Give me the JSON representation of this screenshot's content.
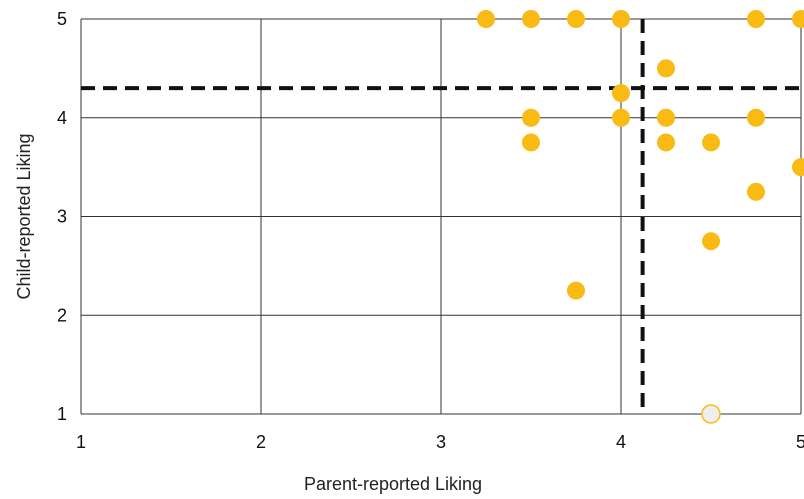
{
  "chart_data": {
    "type": "scatter",
    "xlabel": "Parent-reported Liking",
    "ylabel": "Child-reported Liking",
    "xlim": [
      1,
      5
    ],
    "ylim": [
      1,
      5
    ],
    "x_ticks": [
      "1",
      "2",
      "3",
      "4",
      "5"
    ],
    "y_ticks": [
      "1",
      "2",
      "3",
      "4",
      "5"
    ],
    "grid": true,
    "reference_lines": {
      "x_mean": 4.12,
      "y_mean": 4.3,
      "style": "dashed"
    },
    "point_color": "#F9BA14",
    "hollow_point_fill": "#EEEEEE",
    "points": [
      {
        "x": 3.25,
        "y": 5.0
      },
      {
        "x": 3.5,
        "y": 5.0
      },
      {
        "x": 3.75,
        "y": 5.0
      },
      {
        "x": 4.0,
        "y": 5.0
      },
      {
        "x": 4.75,
        "y": 5.0
      },
      {
        "x": 5.0,
        "y": 5.0
      },
      {
        "x": 4.25,
        "y": 4.5
      },
      {
        "x": 4.0,
        "y": 4.25
      },
      {
        "x": 3.5,
        "y": 4.0
      },
      {
        "x": 4.0,
        "y": 4.0
      },
      {
        "x": 4.25,
        "y": 4.0
      },
      {
        "x": 4.75,
        "y": 4.0
      },
      {
        "x": 3.5,
        "y": 3.75
      },
      {
        "x": 4.25,
        "y": 3.75
      },
      {
        "x": 4.5,
        "y": 3.75
      },
      {
        "x": 5.0,
        "y": 3.5
      },
      {
        "x": 4.75,
        "y": 3.25
      },
      {
        "x": 4.5,
        "y": 2.75
      },
      {
        "x": 3.75,
        "y": 2.25
      },
      {
        "x": 4.5,
        "y": 1.0,
        "hollow": true
      }
    ]
  }
}
